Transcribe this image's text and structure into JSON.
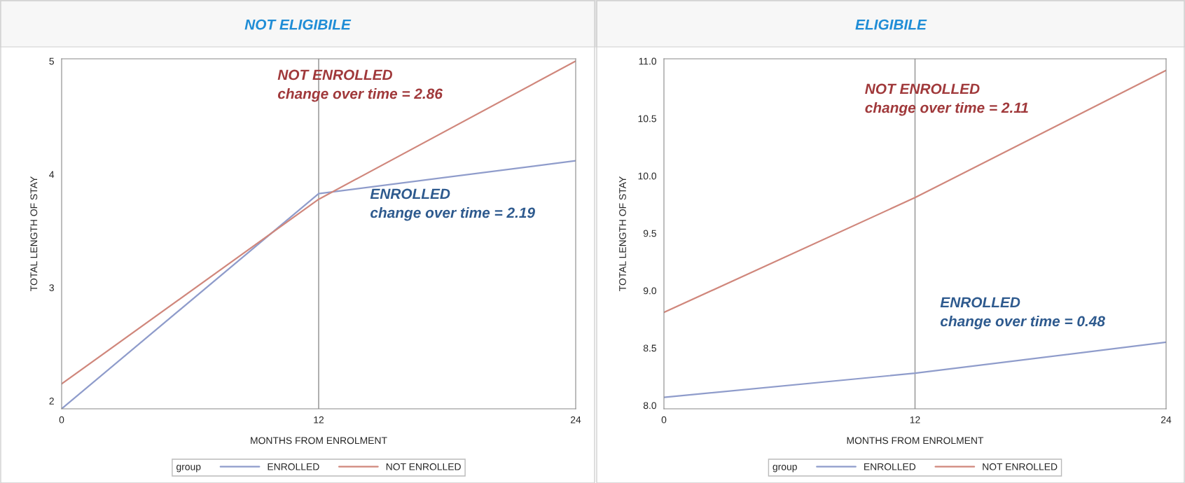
{
  "chart_data": [
    {
      "type": "line",
      "title": "NOT ELIGIBILE",
      "xlabel": "MONTHS FROM ENROLMENT",
      "ylabel": "TOTAL LENGTH OF STAY",
      "legend_title": "group",
      "legend": "bottom",
      "x": [
        0,
        12,
        24
      ],
      "xlim": [
        0,
        24
      ],
      "xticks": [
        0,
        12,
        24
      ],
      "ylim": [
        1.93,
        5.02
      ],
      "yticks": [
        2,
        3,
        4,
        5
      ],
      "grid": false,
      "series": [
        {
          "name": "ENROLLED",
          "color": "#8f9ccb",
          "values": [
            1.93,
            3.83,
            4.12
          ]
        },
        {
          "name": "NOT ENROLLED",
          "color": "#d0877c",
          "values": [
            2.15,
            3.78,
            5.0
          ]
        }
      ],
      "ref_lines": [
        {
          "axis": "x",
          "value": 12,
          "color": "#a0a0a0"
        }
      ],
      "annotations": [
        "NOT ENROLLED\nchange over time = 2.86",
        "ENROLLED\nchange over time = 2.19"
      ]
    },
    {
      "type": "line",
      "title": "ELIGIBILE",
      "xlabel": "MONTHS FROM ENROLMENT",
      "ylabel": "TOTAL LENGTH OF STAY",
      "legend_title": "group",
      "legend": "bottom",
      "x": [
        0,
        12,
        24
      ],
      "xlim": [
        0,
        24
      ],
      "xticks": [
        0,
        12,
        24
      ],
      "ylim": [
        7.97,
        11.02
      ],
      "yticks": [
        {
          "value": 8,
          "label": "8.0"
        },
        {
          "value": 8.5,
          "label": "8.5"
        },
        {
          "value": 9,
          "label": "9.0"
        },
        {
          "value": 9.5,
          "label": "9.5"
        },
        {
          "value": 10,
          "label": "10.0"
        },
        {
          "value": 10.5,
          "label": "10.5"
        },
        {
          "value": 11,
          "label": "11.0"
        }
      ],
      "grid": false,
      "series": [
        {
          "name": "ENROLLED",
          "color": "#8f9ccb",
          "values": [
            8.07,
            8.28,
            8.55
          ]
        },
        {
          "name": "NOT ENROLLED",
          "color": "#d0877c",
          "values": [
            8.81,
            9.81,
            10.92
          ]
        }
      ],
      "ref_lines": [
        {
          "axis": "x",
          "value": 12,
          "color": "#a0a0a0"
        }
      ],
      "annotations": [
        "NOT ENROLLED\nchange over time = 2.11",
        "ENROLLED\nchange over time = 0.48"
      ]
    }
  ]
}
